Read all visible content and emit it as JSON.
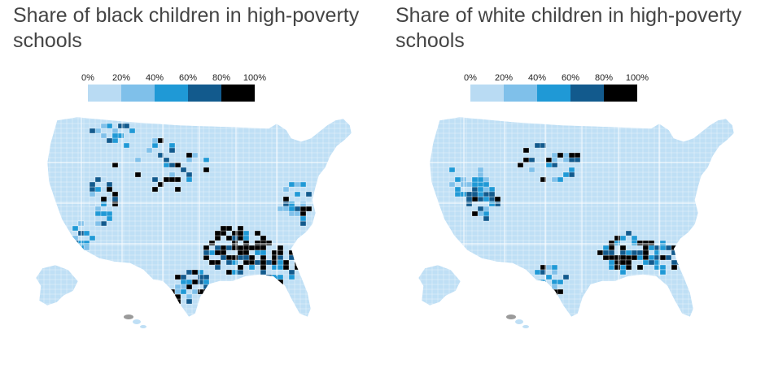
{
  "legend": {
    "labels": [
      "0%",
      "20%",
      "40%",
      "60%",
      "80%",
      "100%"
    ],
    "colors": [
      "#b9dbf3",
      "#7fc0ea",
      "#1f99d6",
      "#125a8d",
      "#000000"
    ]
  },
  "colors": {
    "land": "#bfdff5",
    "border": "#ffffff",
    "no_data": "#9a9a9a"
  },
  "maps": [
    {
      "id": "black",
      "title": "Share of black children in high-poverty schools",
      "hotspots": "black"
    },
    {
      "id": "white",
      "title": "Share of white children in high-poverty schools",
      "hotspots": "white"
    }
  ]
}
